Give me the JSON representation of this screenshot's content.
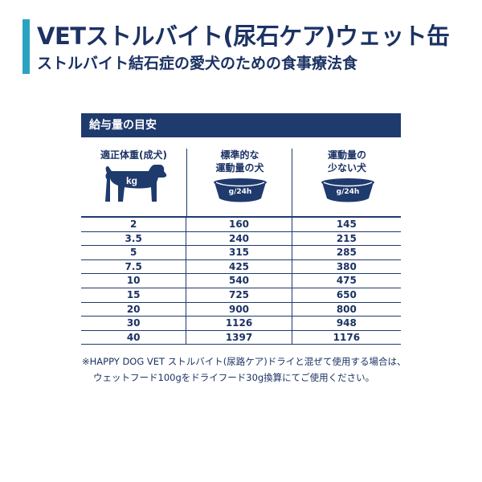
{
  "colors": {
    "accent": "#2aa3c1",
    "navy": "#1f3a6d"
  },
  "header": {
    "title": "VETストルバイト(尿石ケア)ウェット缶",
    "subtitle": "ストルバイト結石症の愛犬のための食事療法食"
  },
  "table": {
    "heading": "給与量の目安",
    "col1": {
      "label": "適正体重(成犬)",
      "unit": "kg",
      "icon": "dog-icon"
    },
    "col2": {
      "label_line1": "標準的な",
      "label_line2": "運動量の犬",
      "unit": "g/24h",
      "icon": "bowl-icon"
    },
    "col3": {
      "label_line1": "運動量の",
      "label_line2": "少ない犬",
      "unit": "g/24h",
      "icon": "bowl-icon"
    },
    "rows": [
      [
        "2",
        "160",
        "145"
      ],
      [
        "3.5",
        "240",
        "215"
      ],
      [
        "5",
        "315",
        "285"
      ],
      [
        "7.5",
        "425",
        "380"
      ],
      [
        "10",
        "540",
        "475"
      ],
      [
        "15",
        "725",
        "650"
      ],
      [
        "20",
        "900",
        "800"
      ],
      [
        "30",
        "1126",
        "948"
      ],
      [
        "40",
        "1397",
        "1176"
      ]
    ]
  },
  "note": {
    "line1": "※HAPPY DOG VET ストルバイト(尿路ケア)ドライと混ぜて使用する場合は、",
    "line2": "ウェットフード100gをドライフード30g換算にてご使用ください。"
  }
}
